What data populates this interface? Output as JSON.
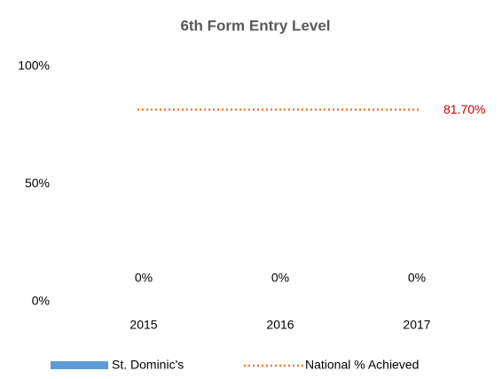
{
  "chart_data": {
    "type": "bar",
    "title": "6th Form Entry Level",
    "categories": [
      "2015",
      "2016",
      "2017"
    ],
    "series": [
      {
        "name": "St. Dominic's",
        "type": "bar",
        "color": "#5b9bd5",
        "values": [
          0,
          0,
          0
        ],
        "value_labels": [
          "0%",
          "0%",
          "0%"
        ]
      },
      {
        "name": "National % Achieved",
        "type": "line",
        "color": "#ed7d31",
        "values": [
          81.7,
          81.7,
          81.7
        ],
        "value_labels": [
          null,
          null,
          "81.70%"
        ],
        "value_label_color": "#c00000"
      }
    ],
    "ylim": [
      0,
      100
    ],
    "yticks": [
      {
        "value": 0,
        "label": "0%"
      },
      {
        "value": 50,
        "label": "50%"
      },
      {
        "value": 100,
        "label": "100%"
      }
    ],
    "grid": false,
    "legend": "bottom"
  }
}
